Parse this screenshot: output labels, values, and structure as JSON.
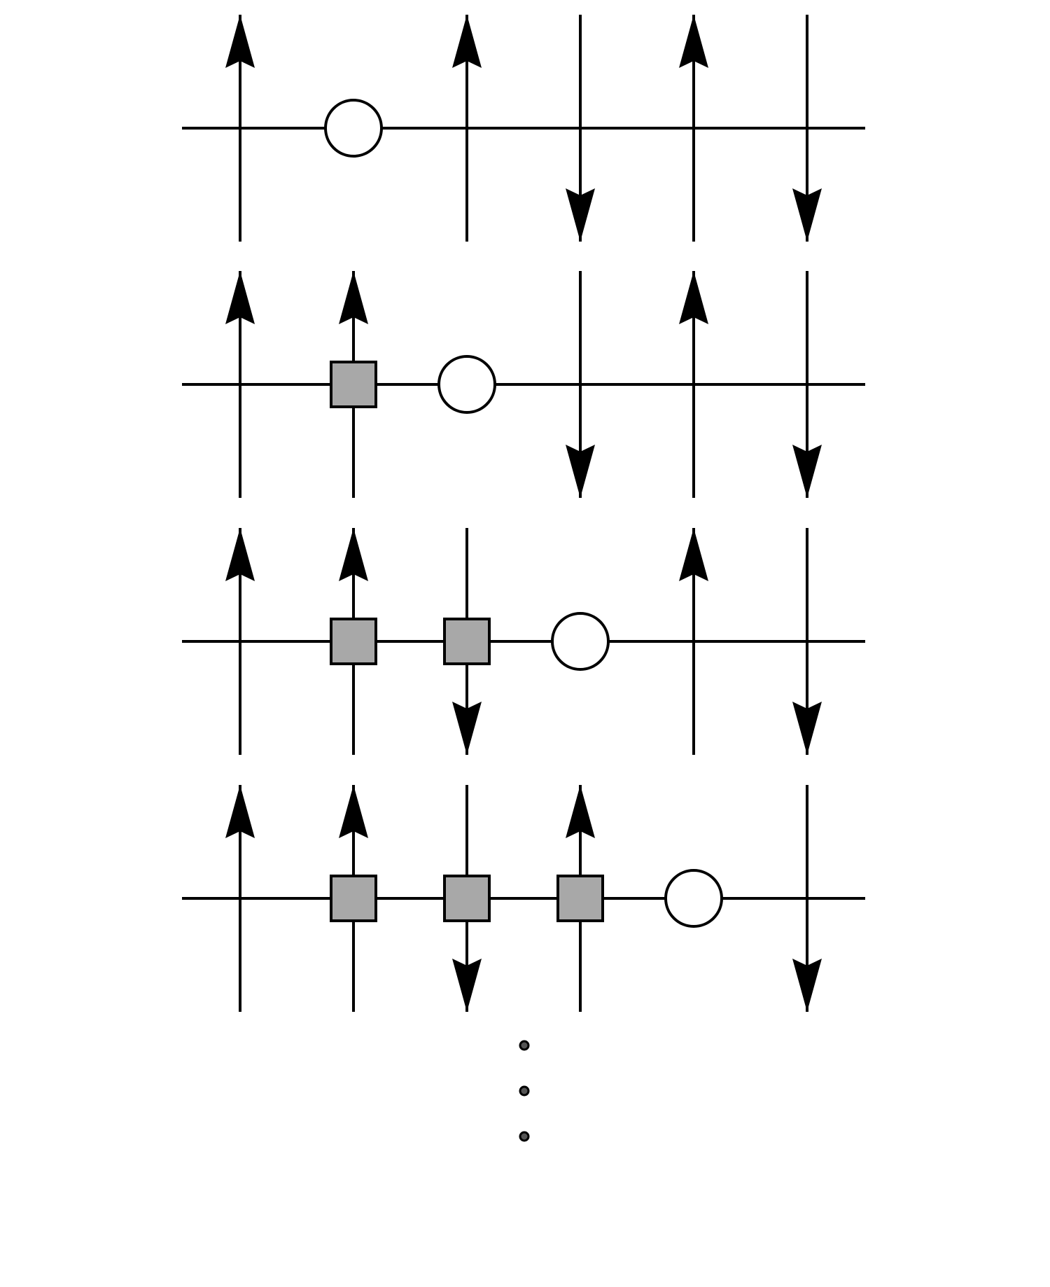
{
  "colors": {
    "line": "#000000",
    "box_fill": "#a8a8a8",
    "circle_fill": "#ffffff",
    "dot_fill": "#555555",
    "background": "#ffffff"
  },
  "columns": 6,
  "rows": [
    {
      "spins": [
        "up",
        "none",
        "up",
        "down",
        "up",
        "down"
      ],
      "boxes": [],
      "circle": 1
    },
    {
      "spins": [
        "up",
        "up",
        "none",
        "down",
        "up",
        "down"
      ],
      "boxes": [
        1
      ],
      "circle": 2
    },
    {
      "spins": [
        "up",
        "up",
        "down",
        "none",
        "up",
        "down"
      ],
      "boxes": [
        1,
        2
      ],
      "circle": 3
    },
    {
      "spins": [
        "up",
        "up",
        "down",
        "up",
        "none",
        "down"
      ],
      "boxes": [
        1,
        2,
        3
      ],
      "circle": 4
    }
  ],
  "continuation_dots": 3
}
